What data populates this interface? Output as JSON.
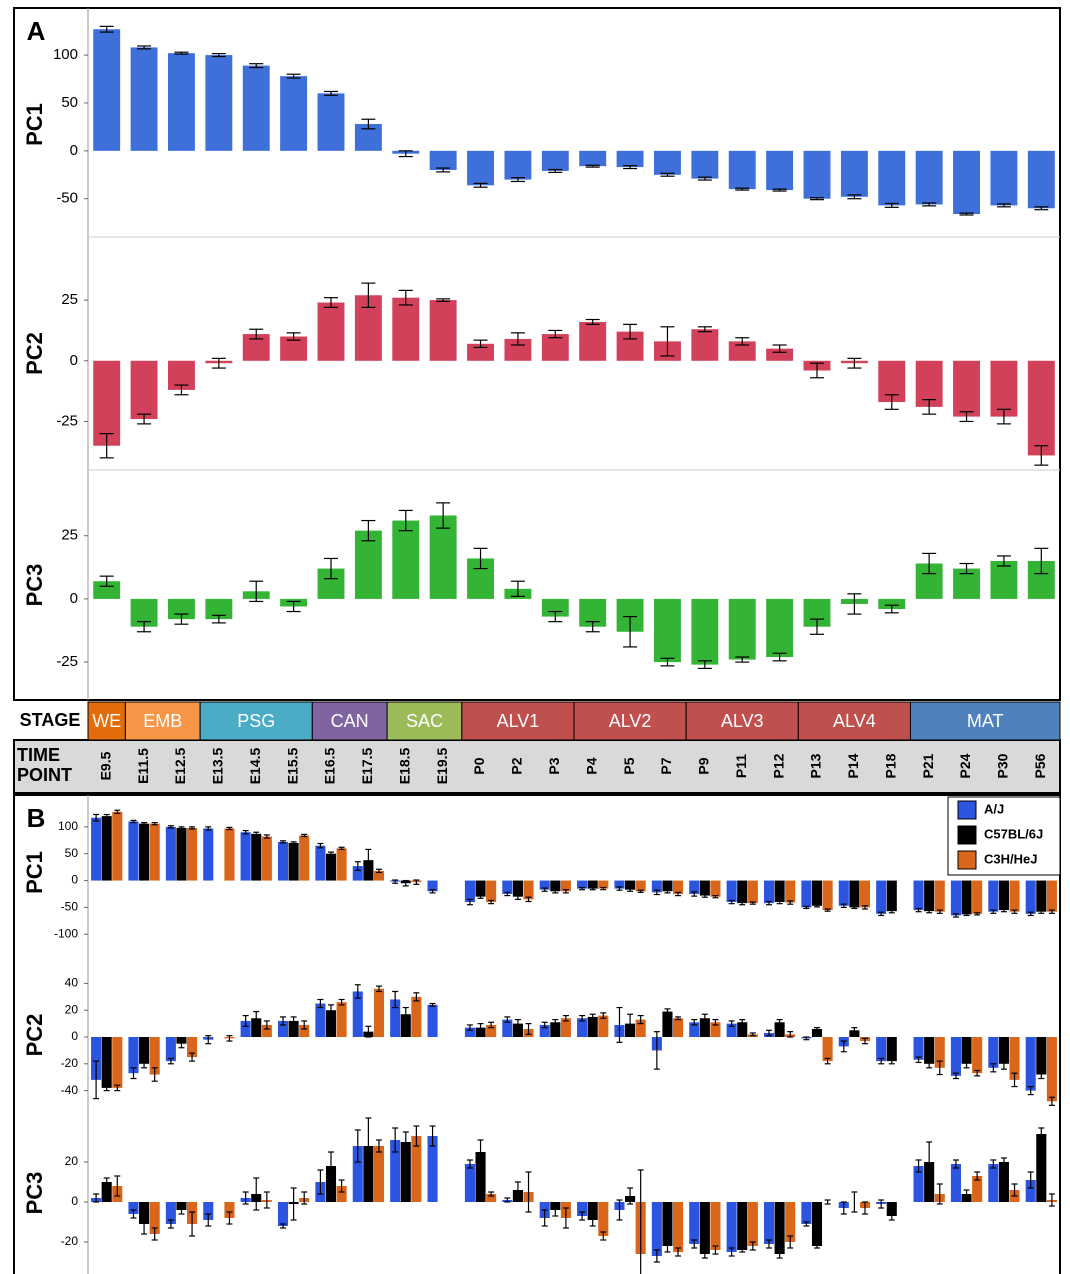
{
  "panel_labels": [
    "A",
    "B"
  ],
  "timeline": {
    "stage_header": "STAGE",
    "time_header": "TIME POINT",
    "stages": [
      {
        "name": "WE",
        "span": 1,
        "color": "#e36c0a"
      },
      {
        "name": "EMB",
        "span": 2,
        "color": "#f79646"
      },
      {
        "name": "PSG",
        "span": 3,
        "color": "#4bacc6"
      },
      {
        "name": "CAN",
        "span": 2,
        "color": "#8064a2"
      },
      {
        "name": "SAC",
        "span": 2,
        "color": "#9bbb59"
      },
      {
        "name": "ALV1",
        "span": 3,
        "color": "#c0504d"
      },
      {
        "name": "ALV2",
        "span": 3,
        "color": "#c0504d"
      },
      {
        "name": "ALV3",
        "span": 3,
        "color": "#c0504d"
      },
      {
        "name": "ALV4",
        "span": 3,
        "color": "#c0504d"
      },
      {
        "name": "MAT",
        "span": 4,
        "color": "#4f81bd"
      }
    ],
    "time_points": [
      "E9.5",
      "E11.5",
      "E12.5",
      "E13.5",
      "E14.5",
      "E15.5",
      "E16.5",
      "E17.5",
      "E18.5",
      "E19.5",
      "P0",
      "P2",
      "P3",
      "P4",
      "P5",
      "P7",
      "P9",
      "P11",
      "P12",
      "P13",
      "P14",
      "P18",
      "P21",
      "P24",
      "P30",
      "P56"
    ]
  },
  "chart_data": [
    {
      "type": "bar",
      "ylabel": "PC1",
      "color": "#3f6fd9",
      "ylim": [
        -90,
        145
      ],
      "yticks": [
        -50,
        0,
        50,
        100
      ],
      "values": [
        127,
        108,
        102,
        100,
        89,
        78,
        60,
        28,
        -3,
        -20,
        -36,
        -30,
        -21,
        -16,
        -17,
        -25,
        -29,
        -40,
        -41,
        -50,
        -48,
        -57,
        -56,
        -66,
        -57,
        -60
      ],
      "errors": [
        3,
        1.5,
        1,
        1.5,
        2,
        2,
        2,
        5,
        3,
        2,
        2,
        2,
        1.5,
        1,
        1.5,
        1.5,
        1.5,
        1,
        1,
        1,
        2,
        2,
        1.5,
        1,
        1.5,
        1.5
      ]
    },
    {
      "type": "bar",
      "ylabel": "PC2",
      "color": "#d3405a",
      "ylim": [
        -45,
        51
      ],
      "yticks": [
        -25,
        0,
        25
      ],
      "values": [
        -35,
        -24,
        -12,
        -1,
        11,
        10,
        24,
        27,
        26,
        25,
        7,
        9,
        11,
        16,
        12,
        8,
        13,
        8,
        5,
        -4,
        -1,
        -17,
        -19,
        -23,
        -23,
        -39
      ],
      "errors": [
        5,
        2,
        2,
        2,
        2,
        1.5,
        2,
        5,
        3,
        0.5,
        1.5,
        2.5,
        1.5,
        1,
        3,
        6,
        1,
        1.5,
        1.5,
        3,
        2,
        3,
        3,
        2,
        3,
        4
      ]
    },
    {
      "type": "bar",
      "ylabel": "PC3",
      "color": "#33b435",
      "ylim": [
        -40,
        51
      ],
      "yticks": [
        -25,
        0,
        25
      ],
      "values": [
        7,
        -11,
        -8,
        -8,
        3,
        -3,
        12,
        27,
        31,
        33,
        16,
        4,
        -7,
        -11,
        -13,
        -25,
        -26,
        -24,
        -23,
        -11,
        -2,
        -4,
        14,
        12,
        15,
        15
      ],
      "errors": [
        2,
        2,
        2,
        1.5,
        4,
        2,
        4,
        4,
        4,
        5,
        4,
        3,
        2,
        2,
        6,
        1.5,
        1.5,
        1,
        1.5,
        3,
        4,
        1.5,
        4,
        2,
        2,
        5
      ]
    },
    {
      "type": "grouped_bar",
      "ylabel": "PC1",
      "ylim": [
        -120,
        150
      ],
      "yticks": [
        -100,
        -50,
        0,
        50,
        100
      ],
      "series": [
        {
          "name": "A/J",
          "color": "#2b55e0",
          "values": [
            117,
            110,
            100,
            97,
            90,
            72,
            65,
            27,
            -2,
            -20,
            -40,
            -25,
            -17,
            -15,
            -15,
            -22,
            -25,
            -40,
            -42,
            -50,
            -47,
            -62,
            -55,
            -65,
            -58,
            -62
          ],
          "errors": [
            6,
            2,
            2,
            3,
            3,
            2,
            4,
            8,
            3,
            3,
            5,
            3,
            3,
            2,
            3,
            4,
            4,
            3,
            3,
            2,
            3,
            3,
            3,
            3,
            3,
            3
          ]
        },
        {
          "name": "C57BL/6J",
          "color": "#000000",
          "values": [
            120,
            106,
            98,
            null,
            87,
            70,
            50,
            38,
            -5,
            null,
            -30,
            -30,
            -20,
            -15,
            -17,
            -20,
            -28,
            -42,
            -40,
            -47,
            -50,
            -57,
            -57,
            -63,
            -55,
            -58
          ],
          "errors": [
            3,
            2,
            2,
            null,
            3,
            2,
            3,
            20,
            5,
            null,
            3,
            5,
            3,
            2,
            3,
            3,
            3,
            3,
            3,
            2,
            2,
            3,
            3,
            2,
            3,
            3
          ]
        },
        {
          "name": "C3H/HeJ",
          "color": "#d9661a",
          "values": [
            128,
            106,
            98,
            97,
            82,
            84,
            60,
            18,
            -3,
            null,
            -40,
            -35,
            -20,
            -15,
            -20,
            -25,
            -30,
            -42,
            -41,
            -55,
            -50,
            null,
            -58,
            -62,
            -58,
            -58
          ],
          "errors": [
            3,
            2,
            2,
            2,
            3,
            2,
            2,
            3,
            4,
            null,
            3,
            4,
            3,
            2,
            2,
            3,
            2,
            2,
            3,
            2,
            3,
            null,
            3,
            2,
            3,
            3
          ]
        }
      ]
    },
    {
      "type": "grouped_bar",
      "ylabel": "PC2",
      "ylim": [
        -53,
        56
      ],
      "yticks": [
        -40,
        -20,
        0,
        20,
        40
      ],
      "series": [
        {
          "color": "#2b55e0",
          "values": [
            -32,
            -27,
            -18,
            -2,
            12,
            12,
            25,
            34,
            28,
            24,
            7,
            13,
            9,
            14,
            9,
            -10,
            11,
            10,
            3,
            -1,
            -7,
            -18,
            -17,
            -29,
            -23,
            -40
          ],
          "errors": [
            14,
            4,
            2,
            3,
            4,
            3,
            3,
            5,
            6,
            1,
            2,
            2,
            2,
            2,
            13,
            14,
            2,
            2,
            2,
            1,
            4,
            2,
            2,
            2,
            3,
            3
          ]
        },
        {
          "color": "#000000",
          "values": [
            -38,
            -20,
            -5,
            null,
            14,
            12,
            20,
            4,
            17,
            null,
            7,
            10,
            11,
            15,
            10,
            19,
            14,
            11,
            11,
            6,
            5,
            -18,
            -20,
            -20,
            -20,
            -28
          ],
          "errors": [
            2,
            3,
            3,
            null,
            5,
            3,
            4,
            4,
            5,
            null,
            3,
            3,
            2,
            2,
            7,
            2,
            3,
            2,
            2,
            1,
            2,
            2,
            3,
            3,
            4,
            3
          ]
        },
        {
          "color": "#d9661a",
          "values": [
            -38,
            -28,
            -15,
            -1,
            9,
            9,
            26,
            36,
            30,
            null,
            9,
            6,
            14,
            16,
            13,
            14,
            11,
            2,
            2,
            -18,
            -3,
            null,
            -23,
            -27,
            -32,
            -48
          ],
          "errors": [
            2,
            5,
            3,
            2,
            3,
            3,
            2,
            2,
            3,
            null,
            2,
            4,
            2,
            2,
            3,
            1,
            2,
            1,
            2,
            2,
            2,
            null,
            5,
            2,
            5,
            3
          ]
        }
      ]
    },
    {
      "type": "grouped_bar",
      "ylabel": "PC3",
      "ylim": [
        -36,
        45
      ],
      "yticks": [
        -20,
        0,
        20
      ],
      "series": [
        {
          "color": "#2b55e0",
          "values": [
            2,
            -6,
            -11,
            -9,
            2,
            -12,
            10,
            28,
            31,
            33,
            19,
            1,
            -8,
            -7,
            -4,
            -27,
            -21,
            -25,
            -21,
            -11,
            -3,
            -1,
            18,
            19,
            19,
            11
          ],
          "errors": [
            2,
            2,
            2,
            3,
            3,
            1,
            6,
            8,
            6,
            5,
            2,
            1,
            4,
            2,
            5,
            3,
            2,
            2,
            2,
            1,
            3,
            2,
            3,
            2,
            2,
            4
          ]
        },
        {
          "color": "#000000",
          "values": [
            10,
            -11,
            -4,
            null,
            4,
            -1,
            18,
            28,
            30,
            null,
            25,
            6,
            -4,
            -9,
            3,
            -22,
            -26,
            -24,
            -26,
            -22,
            0,
            -7,
            20,
            4,
            20,
            34
          ],
          "errors": [
            2,
            5,
            2,
            null,
            8,
            8,
            7,
            14,
            5,
            null,
            6,
            4,
            3,
            3,
            4,
            3,
            2,
            1,
            2,
            1,
            5,
            2,
            10,
            2,
            2,
            3
          ]
        },
        {
          "color": "#d9661a",
          "values": [
            8,
            -16,
            -11,
            -8,
            1,
            2,
            8,
            28,
            33,
            null,
            4,
            5,
            -8,
            -17,
            -26,
            -25,
            -24,
            -22,
            -20,
            0,
            -3,
            null,
            4,
            13,
            6,
            1
          ],
          "errors": [
            5,
            3,
            6,
            3,
            4,
            3,
            3,
            3,
            5,
            null,
            1,
            10,
            5,
            2,
            42,
            2,
            2,
            2,
            3,
            1,
            3,
            null,
            5,
            2,
            3,
            3
          ]
        }
      ]
    }
  ]
}
